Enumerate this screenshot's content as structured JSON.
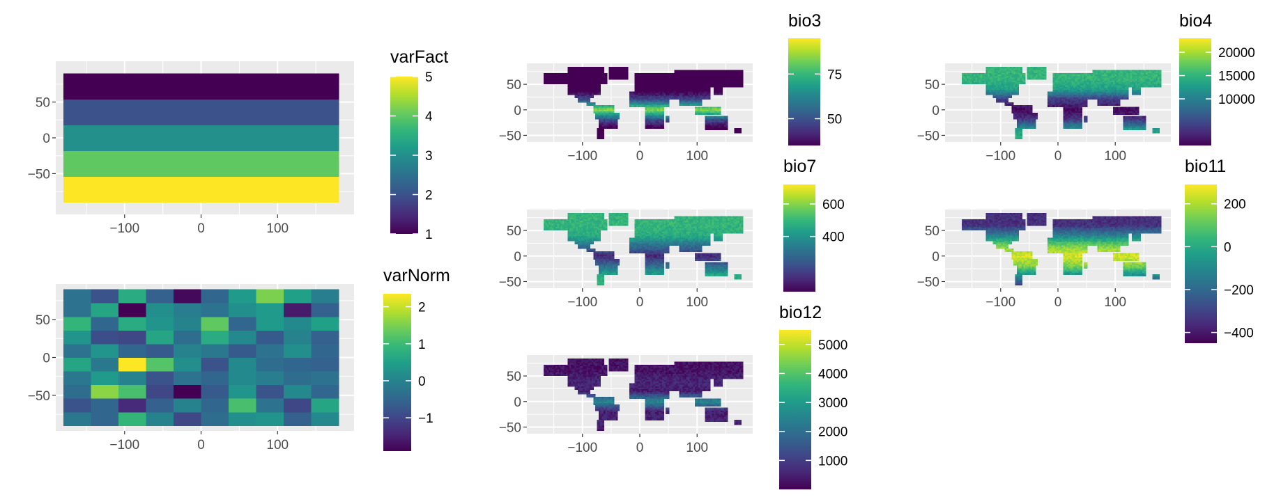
{
  "panel_bg": "#ebebeb",
  "grid_color": "#ffffff",
  "palette": [
    "#440154",
    "#482878",
    "#3e4a89",
    "#31688e",
    "#26828e",
    "#1f9e89",
    "#35b779",
    "#6dcd59",
    "#b4de2c",
    "#fde725"
  ],
  "chart_data": [
    {
      "id": "varFact",
      "type": "heatmap",
      "legend_title": "varFact",
      "x_ticks": [
        "−100",
        "0",
        "100"
      ],
      "x_tick_values": [
        -100,
        0,
        100
      ],
      "y_ticks": [
        "50",
        "0",
        "−50"
      ],
      "y_tick_values": [
        50,
        0,
        -50
      ],
      "xlim": [
        -190,
        200
      ],
      "ylim": [
        -107,
        107
      ],
      "grid": true,
      "legend_position": "right",
      "color_range": [
        1,
        5
      ],
      "color_ticks": [
        "5",
        "4",
        "3",
        "2",
        "1"
      ],
      "color_tick_values": [
        5,
        4,
        3,
        2,
        1
      ],
      "x_edges": [
        -180,
        180
      ],
      "y_edges": [
        -90,
        -54,
        -18,
        18,
        54,
        90
      ],
      "values": [
        [
          5
        ],
        [
          4
        ],
        [
          3
        ],
        [
          2
        ],
        [
          1
        ]
      ]
    },
    {
      "id": "varNorm",
      "type": "heatmap",
      "legend_title": "varNorm",
      "x_ticks": [
        "−100",
        "0",
        "100"
      ],
      "x_tick_values": [
        -100,
        0,
        100
      ],
      "y_ticks": [
        "50",
        "0",
        "−50"
      ],
      "y_tick_values": [
        50,
        0,
        -50
      ],
      "xlim": [
        -190,
        200
      ],
      "ylim": [
        -97,
        97
      ],
      "grid": true,
      "legend_position": "right",
      "color_range": [
        -1.9,
        2.35
      ],
      "color_ticks": [
        "2",
        "1",
        "0",
        "−1"
      ],
      "color_tick_values": [
        2,
        1,
        0,
        -1
      ],
      "x_edges": [
        -180,
        -144,
        -108,
        -72,
        -36,
        0,
        36,
        72,
        108,
        144,
        180
      ],
      "y_edges": [
        -90,
        -72,
        -54,
        -36,
        -18,
        0,
        18,
        36,
        54,
        72,
        90
      ],
      "values": [
        [
          -0.2,
          -0.5,
          0.9,
          0.0,
          -1.0,
          -0.4,
          0.2,
          0.3,
          -0.6,
          0.1
        ],
        [
          -0.8,
          -0.5,
          -1.4,
          -0.6,
          0.0,
          -0.5,
          1.1,
          -0.3,
          -1.0,
          0.6
        ],
        [
          -0.4,
          1.6,
          1.1,
          -1.0,
          -1.9,
          -0.7,
          0.3,
          -0.8,
          0.1,
          -0.5
        ],
        [
          -0.2,
          0.4,
          0.0,
          -0.8,
          -0.3,
          -0.5,
          0.1,
          -0.1,
          -0.4,
          -0.3
        ],
        [
          0.6,
          -0.2,
          2.35,
          1.2,
          0.2,
          -0.8,
          0.1,
          -0.4,
          -0.5,
          -0.6
        ],
        [
          -0.3,
          0.3,
          -0.5,
          -0.7,
          0.0,
          -0.2,
          -0.7,
          -0.3,
          0.2,
          -0.5
        ],
        [
          0.3,
          -0.9,
          -1.0,
          0.6,
          -0.4,
          0.7,
          0.1,
          -0.7,
          0.0,
          -0.6
        ],
        [
          0.9,
          -0.5,
          0.7,
          0.3,
          0.0,
          1.3,
          -0.5,
          0.4,
          0.1,
          0.5
        ],
        [
          -0.3,
          0.6,
          -1.9,
          0.2,
          -0.1,
          -0.3,
          0.2,
          0.4,
          -1.6,
          -0.6
        ],
        [
          -0.3,
          -0.8,
          0.7,
          -0.6,
          -1.8,
          -0.5,
          0.4,
          1.5,
          0.5,
          -0.1
        ]
      ]
    },
    {
      "id": "bio3",
      "type": "heatmap",
      "legend_title": "bio3",
      "x_ticks": [
        "−100",
        "0",
        "100"
      ],
      "x_tick_values": [
        -100,
        0,
        100
      ],
      "y_ticks": [
        "50",
        "0",
        "−50"
      ],
      "y_tick_values": [
        50,
        0,
        -50
      ],
      "xlim": [
        -197,
        197
      ],
      "ylim": [
        -63,
        91
      ],
      "grid": true,
      "legend_position": "right",
      "color_range": [
        35,
        95
      ],
      "color_ticks": [
        "75",
        "50"
      ],
      "color_tick_values": [
        75,
        50
      ],
      "map_stats": {
        "polar": 15,
        "temperate": 30,
        "subtropic": 48,
        "tropic": 86
      }
    },
    {
      "id": "bio4",
      "type": "heatmap",
      "legend_title": "bio4",
      "x_ticks": [
        "−100",
        "0",
        "100"
      ],
      "x_tick_values": [
        -100,
        0,
        100
      ],
      "y_ticks": [
        "50",
        "0",
        "−50"
      ],
      "y_tick_values": [
        50,
        0,
        -50
      ],
      "xlim": [
        -197,
        197
      ],
      "ylim": [
        -63,
        91
      ],
      "grid": true,
      "legend_position": "right",
      "color_range": [
        0,
        23000
      ],
      "color_ticks": [
        "20000",
        "15000",
        "10000"
      ],
      "color_tick_values": [
        20000,
        15000,
        10000
      ],
      "map_stats": {
        "polar": 15000,
        "temperate": 13000,
        "subtropic": 4000,
        "tropic": 300
      }
    },
    {
      "id": "bio7",
      "type": "heatmap",
      "legend_title": "bio7",
      "x_ticks": [
        "−100",
        "0",
        "100"
      ],
      "x_tick_values": [
        -100,
        0,
        100
      ],
      "y_ticks": [
        "50",
        "0",
        "−50"
      ],
      "y_tick_values": [
        50,
        0,
        -50
      ],
      "xlim": [
        -197,
        197
      ],
      "ylim": [
        -63,
        91
      ],
      "grid": true,
      "legend_position": "right",
      "color_range": [
        60,
        720
      ],
      "color_ticks": [
        "600",
        "400"
      ],
      "color_tick_values": [
        600,
        400
      ],
      "map_stats": {
        "polar": 490,
        "temperate": 470,
        "subtropic": 300,
        "tropic": 130
      }
    },
    {
      "id": "bio11",
      "type": "heatmap",
      "legend_title": "bio11",
      "x_ticks": [
        "−100",
        "0",
        "100"
      ],
      "x_tick_values": [
        -100,
        0,
        100
      ],
      "y_ticks": [
        "50",
        "0",
        "−50"
      ],
      "y_tick_values": [
        50,
        0,
        -50
      ],
      "xlim": [
        -197,
        197
      ],
      "ylim": [
        -63,
        91
      ],
      "grid": true,
      "legend_position": "right",
      "color_range": [
        -450,
        290
      ],
      "color_ticks": [
        "200",
        "0",
        "−200",
        "−400"
      ],
      "color_tick_values": [
        200,
        0,
        -200,
        -400
      ],
      "map_stats": {
        "polar": -350,
        "temperate": -120,
        "subtropic": 140,
        "tropic": 250
      }
    },
    {
      "id": "bio12",
      "type": "heatmap",
      "legend_title": "bio12",
      "x_ticks": [
        "−100",
        "0",
        "100"
      ],
      "x_tick_values": [
        -100,
        0,
        100
      ],
      "y_ticks": [
        "50",
        "0",
        "−50"
      ],
      "y_tick_values": [
        50,
        0,
        -50
      ],
      "xlim": [
        -197,
        197
      ],
      "ylim": [
        -63,
        91
      ],
      "grid": true,
      "legend_position": "right",
      "color_range": [
        0,
        5500
      ],
      "color_ticks": [
        "5000",
        "4000",
        "3000",
        "2000",
        "1000"
      ],
      "color_tick_values": [
        5000,
        4000,
        3000,
        2000,
        1000
      ],
      "map_stats": {
        "polar": 250,
        "temperate": 600,
        "subtropic": 450,
        "tropic": 2600
      }
    }
  ]
}
